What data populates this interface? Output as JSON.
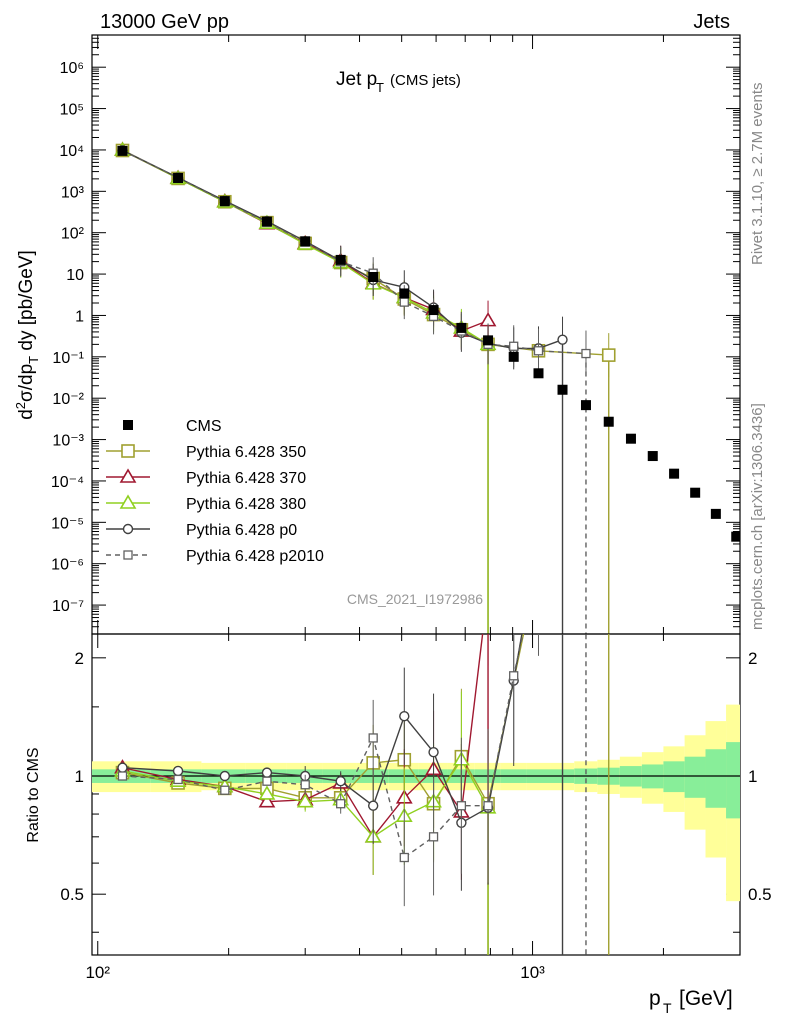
{
  "header": {
    "left": "13000 GeV pp",
    "right": "Jets"
  },
  "side_text": {
    "rivet": "Rivet 3.1.10, ≥ 2.7M events",
    "mcplots": "mcplots.cern.ch [arXiv:1306.3436]"
  },
  "analysis_id": "CMS_2021_I1972986",
  "chart_data": {
    "type": "scatter",
    "title_main": "Jet p",
    "title_sub": "T",
    "title_extra": "(CMS jets)",
    "xlabel": "p",
    "xlabel_sub": "T",
    "xlabel_unit": "[GeV]",
    "ylabel": "d²σ/dp_T dy [pb/GeV]",
    "ratio_ylabel": "Ratio to CMS",
    "xscale": "log",
    "xlim": [
      97,
      3000
    ],
    "ylim": [
      2e-08,
      6000000.0
    ],
    "ratio_ylim": [
      0.35,
      2.3
    ],
    "x_tick_labels": [
      "10²",
      "10³"
    ],
    "y_tick_labels": [
      "10⁻⁷",
      "10⁻⁶",
      "10⁻⁵",
      "10⁻⁴",
      "10⁻³",
      "10⁻²",
      "10⁻¹",
      "1",
      "10",
      "10²",
      "10³",
      "10⁴",
      "10⁵",
      "10⁶"
    ],
    "ratio_tick_labels": [
      "0.5",
      "1",
      "2"
    ],
    "legend_position": "lower-left",
    "legend": [
      {
        "name": "CMS",
        "color": "#000000",
        "marker": "filled-square",
        "dash": false
      },
      {
        "name": "Pythia 6.428 350",
        "color": "#a0a030",
        "marker": "open-square",
        "dash": false
      },
      {
        "name": "Pythia 6.428 370",
        "color": "#a01830",
        "marker": "open-triangle",
        "dash": false
      },
      {
        "name": "Pythia 6.428 380",
        "color": "#90d020",
        "marker": "open-triangle",
        "dash": false
      },
      {
        "name": "Pythia 6.428 p0",
        "color": "#404040",
        "marker": "open-circle",
        "dash": false
      },
      {
        "name": "Pythia 6.428 p2010",
        "color": "#606060",
        "marker": "open-square-small",
        "dash": true
      }
    ],
    "cms": {
      "x": [
        114,
        153,
        196,
        245,
        300,
        362,
        430,
        507,
        592,
        686,
        790,
        905,
        1032,
        1172,
        1327,
        1497,
        1684,
        1890,
        2116,
        2366,
        2640,
        2941
      ],
      "y": [
        9500,
        2100,
        580,
        185,
        62,
        22,
        8.5,
        3.4,
        1.35,
        0.5,
        0.25,
        0.1,
        0.04,
        0.016,
        0.0068,
        0.0027,
        0.00105,
        0.0004,
        0.00015,
        5.2e-05,
        1.6e-05,
        4.5e-06
      ],
      "band_inner": [
        0.04,
        0.04,
        0.04,
        0.04,
        0.04,
        0.04,
        0.04,
        0.04,
        0.04,
        0.04,
        0.04,
        0.04,
        0.04,
        0.04,
        0.045,
        0.05,
        0.06,
        0.07,
        0.09,
        0.12,
        0.17,
        0.22
      ],
      "band_outer": [
        0.09,
        0.09,
        0.08,
        0.08,
        0.08,
        0.08,
        0.08,
        0.08,
        0.08,
        0.08,
        0.08,
        0.08,
        0.08,
        0.08,
        0.09,
        0.1,
        0.12,
        0.15,
        0.19,
        0.27,
        0.38,
        0.52
      ]
    },
    "series": [
      {
        "name": "Pythia 6.428 350",
        "x": [
          114,
          153,
          196,
          245,
          300,
          362,
          430,
          507,
          592,
          686,
          790,
          1032,
          1497
        ],
        "y": [
          9700,
          2050,
          560,
          175,
          55,
          19,
          7.8,
          2.5,
          1.05,
          0.45,
          0.2,
          0.14,
          0.11
        ],
        "ratio": [
          1.02,
          0.96,
          0.93,
          0.93,
          0.88,
          0.88,
          1.08,
          1.1,
          0.85,
          1.12,
          0.85,
          3.5,
          40
        ]
      },
      {
        "name": "Pythia 6.428 370",
        "x": [
          114,
          153,
          196,
          245,
          300,
          362,
          430,
          507,
          592,
          686,
          790
        ],
        "y": [
          9900,
          2080,
          565,
          165,
          55,
          21,
          6.0,
          2.7,
          1.4,
          0.42,
          0.75
        ],
        "ratio": [
          1.05,
          0.98,
          0.94,
          0.86,
          0.87,
          0.96,
          0.7,
          0.88,
          1.04,
          0.81,
          3.0
        ]
      },
      {
        "name": "Pythia 6.428 380",
        "x": [
          114,
          153,
          196,
          245,
          300,
          362,
          430,
          507,
          592,
          686,
          790
        ],
        "y": [
          9900,
          2050,
          555,
          170,
          53,
          19,
          5.8,
          2.7,
          1.15,
          0.5,
          0.2
        ],
        "ratio": [
          1.03,
          0.97,
          0.94,
          0.9,
          0.86,
          0.87,
          0.7,
          0.79,
          0.86,
          1.1,
          0.83
        ]
      },
      {
        "name": "Pythia 6.428 p0",
        "x": [
          114,
          153,
          196,
          245,
          300,
          362,
          430,
          507,
          592,
          686,
          790,
          905,
          1032,
          1172
        ],
        "y": [
          9800,
          2150,
          590,
          190,
          62,
          21,
          7.2,
          4.8,
          1.55,
          0.38,
          0.21,
          0.16,
          0.16,
          0.26
        ],
        "ratio": [
          1.05,
          1.03,
          1.0,
          1.02,
          1.0,
          0.97,
          0.84,
          1.42,
          1.15,
          0.76,
          0.83,
          1.75,
          4.0,
          16
        ]
      },
      {
        "name": "Pythia 6.428 p2010",
        "x": [
          114,
          153,
          196,
          245,
          300,
          362,
          430,
          507,
          592,
          686,
          790,
          905,
          1032,
          1327
        ],
        "y": [
          9600,
          2150,
          560,
          180,
          59,
          20,
          10.5,
          2.1,
          0.95,
          0.42,
          0.2,
          0.18,
          0.14,
          0.12
        ],
        "ratio": [
          1.0,
          0.98,
          0.92,
          0.97,
          0.95,
          0.85,
          1.25,
          0.62,
          0.7,
          0.84,
          0.84,
          1.8,
          3.5,
          18
        ]
      }
    ]
  }
}
